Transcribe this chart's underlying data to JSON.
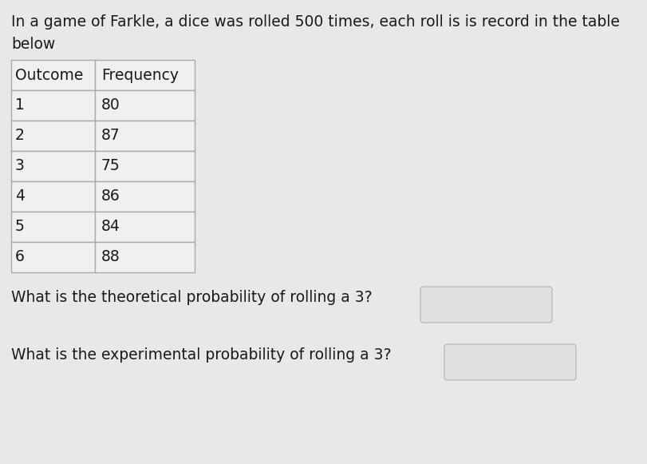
{
  "title_line1": "In a game of Farkle, a dice was rolled 500 times, each roll is is record in the table",
  "title_line2": "below",
  "table_headers": [
    "Outcome",
    "Frequency"
  ],
  "outcomes": [
    "1",
    "2",
    "3",
    "4",
    "5",
    "6"
  ],
  "frequencies": [
    "80",
    "87",
    "75",
    "86",
    "84",
    "88"
  ],
  "question1": "What is the theoretical probability of rolling a 3?",
  "question2": "What is the experimental probability of rolling a 3?",
  "bg_color": "#e8e8e8",
  "table_bg": "#f0f0f0",
  "cell_border": "#aaaaaa",
  "text_color": "#1a1a1a",
  "title_fontsize": 13.5,
  "table_fontsize": 13.5,
  "question_fontsize": 13.5,
  "answer_box_color": "#e0e0e0",
  "answer_box_border": "#bbbbbb",
  "fig_width": 8.12,
  "fig_height": 5.81,
  "dpi": 100
}
